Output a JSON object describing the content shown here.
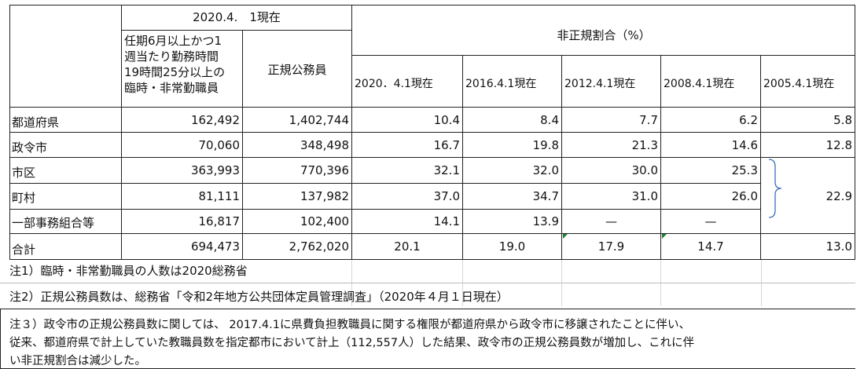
{
  "header": {
    "group_2020": "2020.4.　1現在",
    "col_rinji": [
      "任期6月以上かつ1",
      "週当たり勤務時間",
      "19時間25分以上の",
      "臨時・非常勤職員"
    ],
    "col_seiki": "正規公務員",
    "ratio_group": "非正規割合（%）",
    "ratio_years": [
      "2020．4.1現在",
      "2016.4.1現在",
      "2012.4.1現在",
      "2008.4.1現在",
      "2005.4.1現在"
    ]
  },
  "rows": [
    {
      "label": "都道府県",
      "rinji": "162,492",
      "seiki": "1,402,744",
      "r2020": "10.4",
      "r2016": "8.4",
      "r2012": "7.7",
      "r2008": "6.2",
      "r2005": "5.8"
    },
    {
      "label": "政令市",
      "rinji": "70,060",
      "seiki": "348,498",
      "r2020": "16.7",
      "r2016": "19.8",
      "r2012": "21.3",
      "r2008": "14.6",
      "r2005": "12.8"
    },
    {
      "label": "市区",
      "rinji": "363,993",
      "seiki": "770,396",
      "r2020": "32.1",
      "r2016": "32.0",
      "r2012": "30.0",
      "r2008": "25.3"
    },
    {
      "label": "町村",
      "rinji": "81,111",
      "seiki": "137,982",
      "r2020": "37.0",
      "r2016": "34.7",
      "r2012": "31.0",
      "r2008": "26.0"
    },
    {
      "label": "一部事務組合等",
      "rinji": "16,817",
      "seiki": "102,400",
      "r2020": "14.1",
      "r2016": "13.9",
      "r2012": "—",
      "r2008": "—"
    },
    {
      "label": "合計",
      "rinji": "694,473",
      "seiki": "2,762,020",
      "r2020": "20.1",
      "r2016": "19.0",
      "r2012": "17.9",
      "r2008": "14.7",
      "r2005": "13.0"
    }
  ],
  "merged_2005": "22.9",
  "notes": {
    "note1": "注1）臨時・非常勤職員の人数は2020総務省",
    "note2": "注2）正規公務員数は、総務省「令和2年地方公共団体定員管理調査」（2020年４月１日現在）",
    "note3": [
      "注３）政令市の正規公務員数に関しては、 2017.4.1に県費負担教職員に関する権限が都道府県から政令市に移譲されたことに伴い、",
      "従来、都道府県で計上していた教職員数を指定都市において計上（112,557人）した結果、政令市の正規公務員数が増加し、これに伴",
      "い非正規割合は減少した。"
    ]
  }
}
